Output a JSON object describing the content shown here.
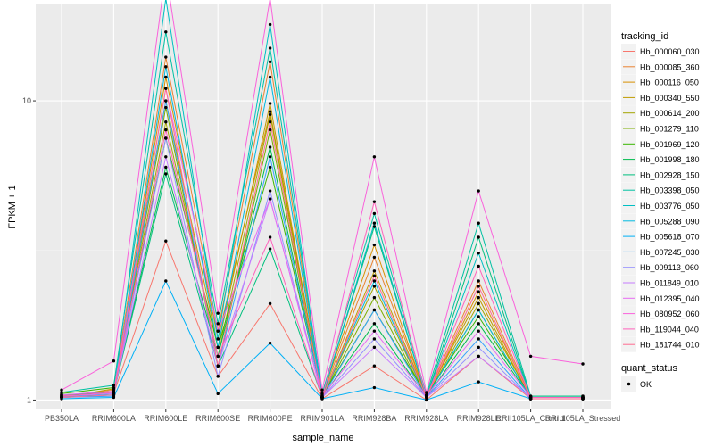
{
  "chart_data": {
    "type": "line",
    "xlabel": "sample_name",
    "ylabel": "FPKM + 1",
    "y_scale": "log10",
    "ylim": [
      0.93,
      21
    ],
    "y_ticks": [
      {
        "value": 1,
        "label": "1"
      },
      {
        "value": 10,
        "label": "10"
      }
    ],
    "grid": true,
    "legend_placement": "right",
    "categories": [
      "PB350LA",
      "RRIM600LA",
      "RRIM600LE",
      "RRIM600SE",
      "RRIM600PE",
      "RRIM901LA",
      "RRIM928BA",
      "RRIM928LA",
      "RRIM928LE",
      "RRII105LA_Control",
      "RRII105LA_Stressed"
    ],
    "legend_title": "tracking_id",
    "series": [
      {
        "name": "Hb_000060_030",
        "color": "#F8766D",
        "values": [
          1.02,
          1.05,
          3.4,
          1.2,
          2.1,
          1.01,
          1.3,
          1.0,
          1.4,
          1.01,
          1.01
        ]
      },
      {
        "name": "Hb_000085_360",
        "color": "#EA8331",
        "values": [
          1.03,
          1.08,
          14.0,
          1.7,
          13.5,
          1.03,
          3.0,
          1.03,
          2.5,
          1.02,
          1.02
        ]
      },
      {
        "name": "Hb_000116_050",
        "color": "#D89000",
        "values": [
          1.04,
          1.06,
          12.0,
          1.6,
          9.2,
          1.04,
          3.3,
          1.02,
          2.3,
          1.02,
          1.02
        ]
      },
      {
        "name": "Hb_000340_550",
        "color": "#C09B00",
        "values": [
          1.02,
          1.09,
          10.0,
          1.5,
          9.8,
          1.02,
          2.7,
          1.03,
          2.2,
          1.01,
          1.01
        ]
      },
      {
        "name": "Hb_000614_200",
        "color": "#A3A500",
        "values": [
          1.03,
          1.07,
          8.5,
          1.4,
          9.0,
          1.02,
          2.4,
          1.02,
          2.1,
          1.02,
          1.02
        ]
      },
      {
        "name": "Hb_001279_110",
        "color": "#7CAE00",
        "values": [
          1.02,
          1.04,
          9.5,
          1.3,
          8.0,
          1.02,
          2.2,
          1.02,
          2.0,
          1.01,
          1.01
        ]
      },
      {
        "name": "Hb_001969_120",
        "color": "#39B600",
        "values": [
          1.05,
          1.1,
          7.5,
          1.5,
          6.0,
          1.03,
          2.0,
          1.04,
          1.9,
          1.03,
          1.03
        ]
      },
      {
        "name": "Hb_001998_180",
        "color": "#00BB4E",
        "values": [
          1.04,
          1.06,
          6.0,
          1.4,
          7.0,
          1.02,
          1.8,
          1.02,
          1.8,
          1.02,
          1.02
        ]
      },
      {
        "name": "Hb_002928_150",
        "color": "#00BF7D",
        "values": [
          1.03,
          1.05,
          5.7,
          1.3,
          3.2,
          1.02,
          3.8,
          1.02,
          3.5,
          1.02,
          1.02
        ]
      },
      {
        "name": "Hb_003398_050",
        "color": "#00C1A3",
        "values": [
          1.06,
          1.12,
          17.0,
          1.8,
          15.0,
          1.05,
          4.2,
          1.04,
          3.9,
          1.03,
          1.03
        ]
      },
      {
        "name": "Hb_003776_050",
        "color": "#00BFC4",
        "values": [
          1.02,
          1.05,
          22.0,
          1.6,
          18.0,
          1.02,
          3.9,
          1.02,
          3.1,
          1.02,
          1.02
        ]
      },
      {
        "name": "Hb_005288_090",
        "color": "#00BAE0",
        "values": [
          1.02,
          1.04,
          13.0,
          1.5,
          12.0,
          1.02,
          2.5,
          1.02,
          2.0,
          1.01,
          1.01
        ]
      },
      {
        "name": "Hb_005618_070",
        "color": "#00B0F6",
        "values": [
          1.01,
          1.02,
          2.5,
          1.05,
          1.55,
          1.01,
          1.1,
          1.0,
          1.15,
          1.01,
          1.01
        ]
      },
      {
        "name": "Hb_007245_030",
        "color": "#35A2FF",
        "values": [
          1.02,
          1.03,
          10.0,
          1.3,
          6.5,
          1.02,
          2.0,
          1.02,
          1.6,
          1.01,
          1.01
        ]
      },
      {
        "name": "Hb_009113_060",
        "color": "#9590FF",
        "values": [
          1.02,
          1.04,
          7.5,
          1.2,
          5.0,
          1.02,
          1.6,
          1.02,
          1.5,
          1.01,
          1.01
        ]
      },
      {
        "name": "Hb_011849_010",
        "color": "#C77CFF",
        "values": [
          1.03,
          1.05,
          6.5,
          1.3,
          4.7,
          1.02,
          1.5,
          1.02,
          1.4,
          1.02,
          1.02
        ]
      },
      {
        "name": "Hb_012395_040",
        "color": "#E76BF3",
        "values": [
          1.04,
          1.07,
          11.0,
          1.7,
          4.7,
          1.03,
          1.7,
          1.03,
          1.7,
          1.02,
          1.02
        ]
      },
      {
        "name": "Hb_080952_060",
        "color": "#FA62DB",
        "values": [
          1.08,
          1.35,
          27.0,
          1.95,
          22.0,
          1.08,
          6.5,
          1.06,
          5.0,
          1.4,
          1.32
        ]
      },
      {
        "name": "Hb_119044_040",
        "color": "#FF62BC",
        "values": [
          1.03,
          1.06,
          8.0,
          1.4,
          3.5,
          1.02,
          4.6,
          1.02,
          2.8,
          1.02,
          1.02
        ]
      },
      {
        "name": "Hb_181744_010",
        "color": "#FF6C91",
        "values": [
          1.02,
          1.04,
          11.0,
          1.3,
          8.5,
          1.02,
          2.6,
          1.02,
          2.4,
          1.01,
          1.01
        ]
      }
    ],
    "shape_legend": {
      "title": "quant_status",
      "items": [
        {
          "label": "OK"
        }
      ]
    }
  }
}
